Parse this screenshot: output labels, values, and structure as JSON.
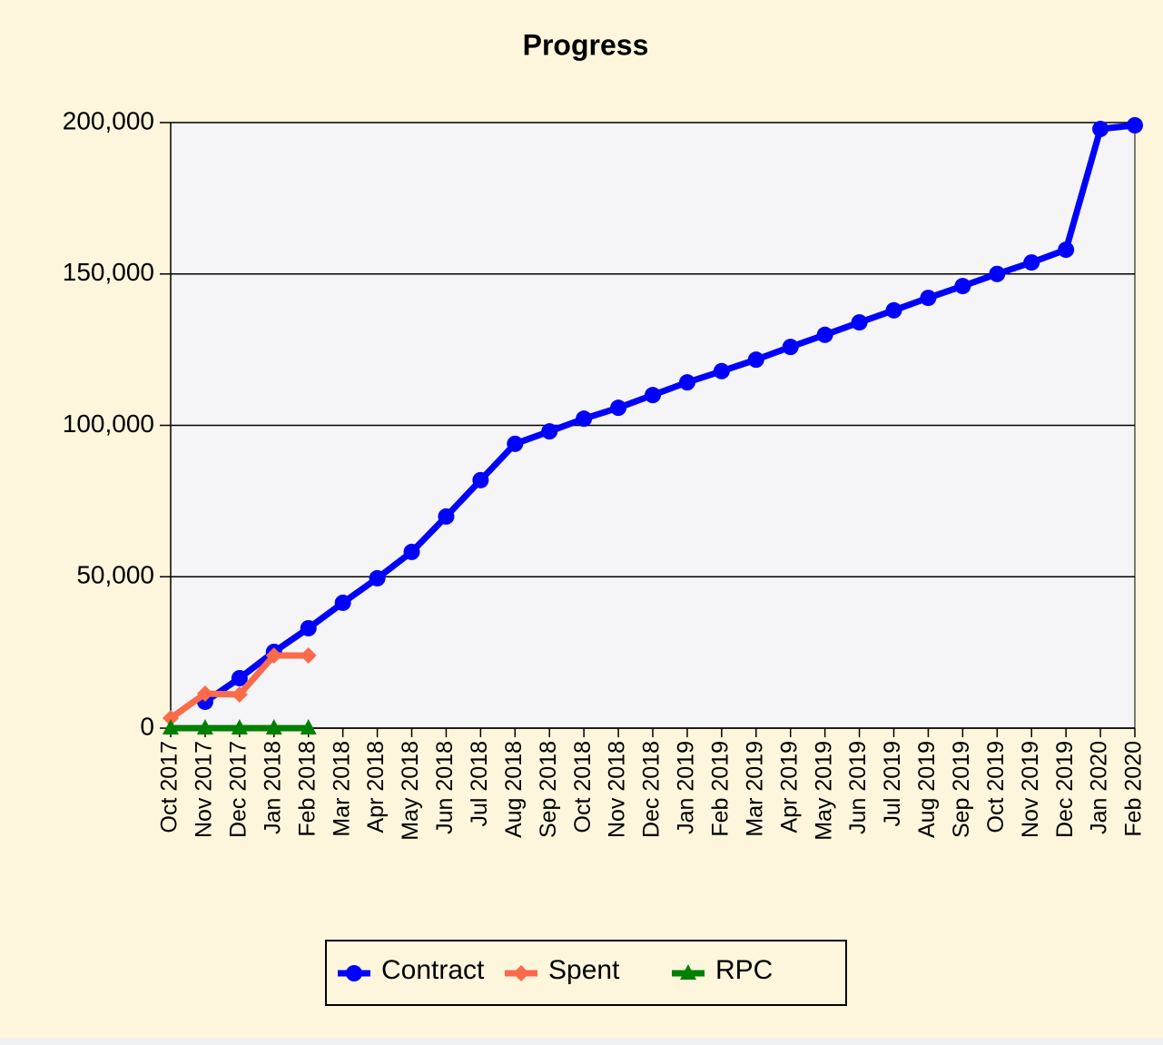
{
  "chart_data": {
    "type": "line",
    "title": "Progress",
    "categories": [
      "Oct 2017",
      "Nov 2017",
      "Dec 2017",
      "Jan 2018",
      "Feb 2018",
      "Mar 2018",
      "Apr 2018",
      "May 2018",
      "Jun 2018",
      "Jul 2018",
      "Aug 2018",
      "Sep 2018",
      "Oct 2018",
      "Nov 2018",
      "Dec 2018",
      "Jan 2019",
      "Feb 2019",
      "Mar 2019",
      "Apr 2019",
      "May 2019",
      "Jun 2019",
      "Jul 2019",
      "Aug 2019",
      "Sep 2019",
      "Oct 2019",
      "Nov 2019",
      "Dec 2019",
      "Jan 2020",
      "Feb 2020"
    ],
    "series": [
      {
        "name": "Contract",
        "color": "#0000ff",
        "marker": "circle",
        "values": [
          null,
          8700,
          16500,
          25200,
          33000,
          41400,
          49500,
          58200,
          69900,
          81900,
          93900,
          98000,
          102200,
          105800,
          110000,
          114200,
          117900,
          121700,
          125900,
          129900,
          134000,
          138000,
          142100,
          146000,
          150000,
          153800,
          158000,
          197900,
          199100
        ]
      },
      {
        "name": "Spent",
        "color": "#fb6a4a",
        "marker": "diamond",
        "values": [
          3300,
          11400,
          11100,
          24000,
          24000,
          null,
          null,
          null,
          null,
          null,
          null,
          null,
          null,
          null,
          null,
          null,
          null,
          null,
          null,
          null,
          null,
          null,
          null,
          null,
          null,
          null,
          null,
          null,
          null
        ]
      },
      {
        "name": "RPC",
        "color": "#008000",
        "marker": "triangle",
        "values": [
          0,
          0,
          0,
          0,
          0,
          null,
          null,
          null,
          null,
          null,
          null,
          null,
          null,
          null,
          null,
          null,
          null,
          null,
          null,
          null,
          null,
          null,
          null,
          null,
          null,
          null,
          null,
          null,
          null
        ]
      }
    ],
    "ylim": [
      0,
      200000
    ],
    "yticks": [
      0,
      {
        "value": 50000,
        "label": "50,000"
      },
      {
        "value": 100000,
        "label": "100,000"
      },
      {
        "value": 150000,
        "label": "150,000"
      },
      {
        "value": 200000,
        "label": "200,000"
      }
    ],
    "grid": true,
    "legend": "bottom"
  }
}
